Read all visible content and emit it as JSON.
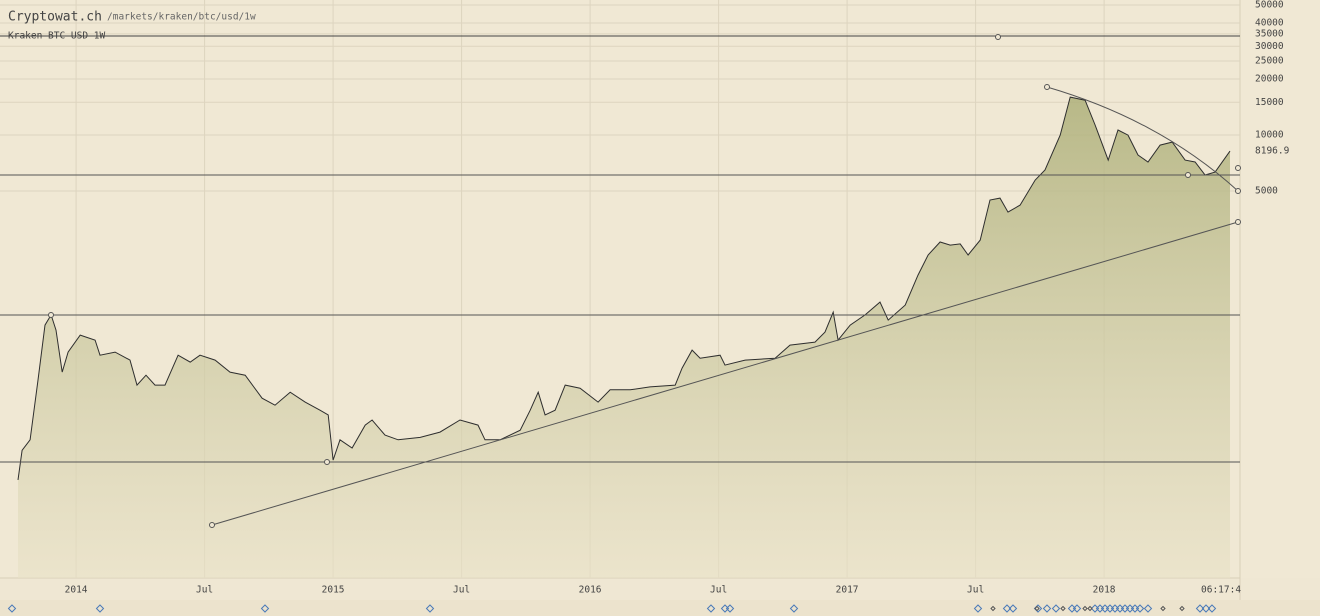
{
  "chart_data": {
    "type": "line",
    "title": "Cryptowat.ch",
    "subtitle": "/markets/kraken/btc/usd/1w",
    "countdown": "06:17:4",
    "log_scale": true,
    "grid": true,
    "x": [
      2013.774,
      2013.79,
      2013.821,
      2013.852,
      2013.879,
      2013.903,
      2013.922,
      2013.946,
      2013.969,
      2014.016,
      2014.074,
      2014.093,
      2014.152,
      2014.21,
      2014.237,
      2014.272,
      2014.307,
      2014.346,
      2014.397,
      2014.444,
      2014.482,
      2014.541,
      2014.599,
      2014.658,
      2014.724,
      2014.774,
      2014.833,
      2014.891,
      2014.949,
      2014.981,
      2015.0,
      2015.027,
      2015.074,
      2015.125,
      2015.152,
      2015.202,
      2015.253,
      2015.339,
      2015.416,
      2015.494,
      2015.564,
      2015.591,
      2015.65,
      2015.728,
      2015.767,
      2015.798,
      2015.825,
      2015.864,
      2015.903,
      2015.961,
      2016.031,
      2016.078,
      2016.156,
      2016.233,
      2016.331,
      2016.358,
      2016.397,
      2016.428,
      2016.506,
      2016.525,
      2016.603,
      2016.72,
      2016.778,
      2016.875,
      2016.914,
      2016.946,
      2016.965,
      2017.012,
      2017.07,
      2017.128,
      2017.16,
      2017.226,
      2017.276,
      2017.315,
      2017.362,
      2017.401,
      2017.44,
      2017.471,
      2017.518,
      2017.556,
      2017.595,
      2017.626,
      2017.673,
      2017.732,
      2017.77,
      2017.829,
      2017.868,
      2017.926,
      2017.965,
      2018.016,
      2018.054,
      2018.093,
      2018.132,
      2018.171,
      2018.218,
      2018.265,
      2018.315,
      2018.354,
      2018.393,
      2018.432,
      2018.49
    ],
    "series": [
      {
        "name": "Kraken BTC USD 1W",
        "color": "#2e2e2e",
        "values": [
          140,
          202,
          230,
          482,
          952,
          1080,
          895,
          532,
          681,
          841,
          790,
          656,
          681,
          617,
          453,
          512,
          453,
          453,
          656,
          602,
          656,
          617,
          532,
          512,
          385,
          353,
          415,
          367,
          332,
          313,
          179,
          230,
          208,
          276,
          294,
          244,
          230,
          237,
          253,
          294,
          276,
          230,
          230,
          259,
          332,
          415,
          313,
          332,
          453,
          436,
          367,
          427,
          427,
          443,
          453,
          559,
          698,
          632,
          656,
          580,
          617,
          632,
          743,
          771,
          873,
          1117,
          790,
          952,
          1080,
          1265,
          1012,
          1219,
          1767,
          2265,
          2660,
          2560,
          2600,
          2265,
          2725,
          4475,
          4580,
          3855,
          4200,
          5730,
          6490,
          10000,
          16000,
          15400,
          11320,
          7330,
          10640,
          10000,
          7810,
          7160,
          8830,
          9170,
          7330,
          7160,
          6100,
          6320,
          8196.9
        ]
      }
    ],
    "xlim": [
      2013.704,
      2018.521
    ],
    "xticks": [
      {
        "value": 2014,
        "label": "2014"
      },
      {
        "value": 2014.5,
        "label": "Jul"
      },
      {
        "value": 2015,
        "label": "2015"
      },
      {
        "value": 2015.5,
        "label": "Jul"
      },
      {
        "value": 2016,
        "label": "2016"
      },
      {
        "value": 2016.5,
        "label": "Jul"
      },
      {
        "value": 2017,
        "label": "2017"
      },
      {
        "value": 2017.5,
        "label": "Jul"
      },
      {
        "value": 2018,
        "label": "2018"
      }
    ],
    "ylim": [
      41.6,
      53200
    ],
    "yticks": [
      5000,
      10000,
      15000,
      20000,
      25000,
      30000,
      35000,
      40000,
      50000
    ]
  }
}
